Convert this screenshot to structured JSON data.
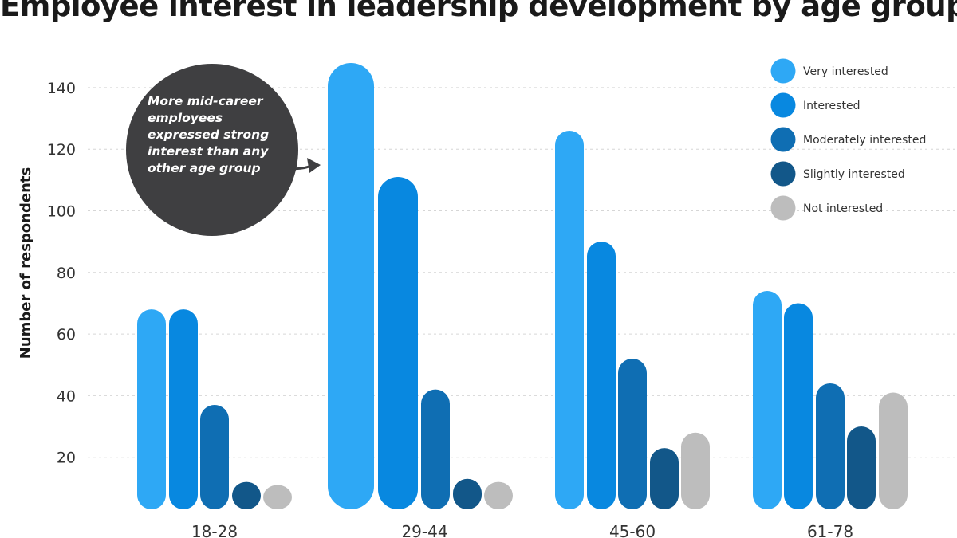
{
  "chart_data": {
    "type": "bar",
    "title": "Employee interest in leadership development by age group",
    "xlabel": "",
    "ylabel": "Number of respondents",
    "yticks": [
      20,
      40,
      60,
      80,
      100,
      120,
      140
    ],
    "ylim": [
      0,
      150
    ],
    "grid": true,
    "legend_position": "top-right",
    "categories": [
      "18-28",
      "29-44",
      "45-60",
      "61-78"
    ],
    "series": [
      {
        "name": "Very interested",
        "color": "#2ea8f5",
        "values": [
          68,
          148,
          126,
          74
        ]
      },
      {
        "name": "Interested",
        "color": "#0888e0",
        "values": [
          68,
          111,
          90,
          70
        ]
      },
      {
        "name": "Moderately interested",
        "color": "#0f6eb3",
        "values": [
          37,
          42,
          52,
          44
        ]
      },
      {
        "name": "Slightly interested",
        "color": "#125789",
        "values": [
          12,
          13,
          23,
          30
        ]
      },
      {
        "name": "Not interested",
        "color": "#bdbdbd",
        "values": [
          11,
          12,
          28,
          41
        ]
      }
    ],
    "annotation": "More mid-career employees expressed strong interest than any other age group"
  }
}
